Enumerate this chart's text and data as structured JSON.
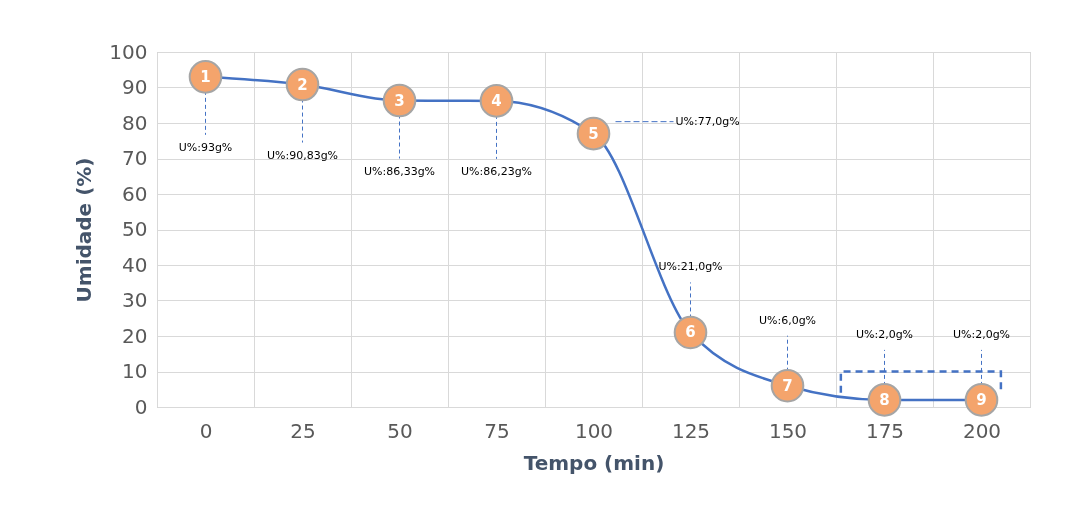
{
  "chart_data": {
    "type": "line",
    "xlabel": "Tempo (min)",
    "ylabel": "Umidade (%)",
    "categories": [
      "0",
      "25",
      "50",
      "75",
      "100",
      "125",
      "150",
      "175",
      "200"
    ],
    "values": [
      93,
      90.83,
      86.33,
      86.23,
      77.0,
      21.0,
      6.0,
      2.0,
      2.0
    ],
    "value_labels": [
      "U%:93g%",
      "U%:90,83g%",
      "U%:86,33g%",
      "U%:86,23g%",
      "U%:77,0g%",
      "U%:21,0g%",
      "U%:6,0g%",
      "U%:2,0g%",
      "U%:2,0g%"
    ],
    "color": "#4472c4",
    "marker": "circle",
    "line_style": "solid",
    "grid": true,
    "ylim": [
      0,
      100
    ],
    "yticks": [
      0,
      10,
      20,
      30,
      40,
      50,
      60,
      70,
      80,
      90,
      100
    ],
    "annotations": [
      {
        "text": "1",
        "x": "0",
        "y": 93
      },
      {
        "text": "2",
        "x": "25",
        "y": 90.83
      },
      {
        "text": "3",
        "x": "50",
        "y": 86.33
      },
      {
        "text": "4",
        "x": "75",
        "y": 86.23
      },
      {
        "text": "5",
        "x": "100",
        "y": 77.0
      },
      {
        "text": "6",
        "x": "125",
        "y": 21.0
      },
      {
        "text": "7",
        "x": "150",
        "y": 6.0
      },
      {
        "text": "8",
        "x": "175",
        "y": 2.0
      },
      {
        "text": "9",
        "x": "200",
        "y": 2.0
      }
    ]
  }
}
